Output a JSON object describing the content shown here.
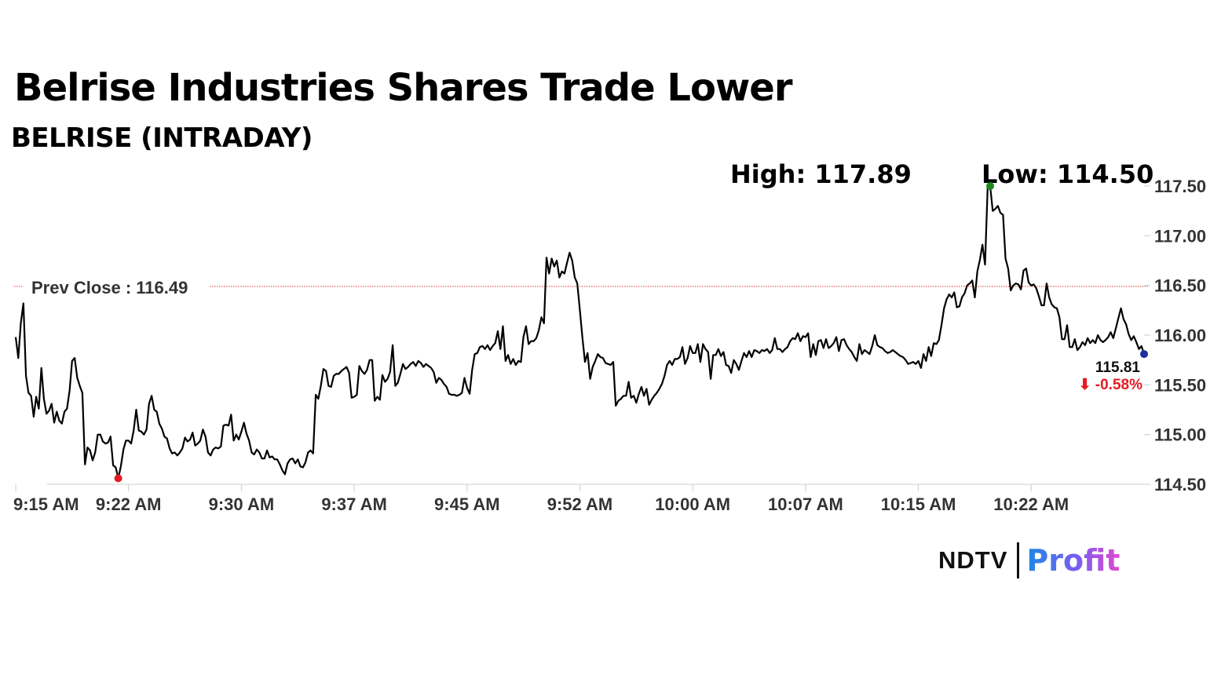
{
  "title": "Belrise Industries Shares Trade Lower",
  "subtitle": "BELRISE (INTRADAY)",
  "high_label": "High: 117.89",
  "low_label": "Low: 114.50",
  "prev_close_label": "Prev Close : 116.49",
  "last_price_label": "115.81",
  "change_label": "⬇ -0.58%",
  "logo": {
    "left": "NDTV",
    "right": "Profit"
  },
  "colors": {
    "line": "#000000",
    "prev_close": "#e53935",
    "high_marker": "#1a8a1a",
    "low_marker": "#e21b22",
    "last_marker": "#1f2f9e",
    "change_negative": "#e21b22",
    "axis": "#cccccc",
    "tick_text": "#333333"
  },
  "chart_data": {
    "type": "line",
    "title": "Belrise Industries Shares Trade Lower",
    "subtitle": "BELRISE (INTRADAY)",
    "xlabel": "",
    "ylabel": "",
    "x_ticks": [
      "9:15 AM",
      "9:22 AM",
      "9:30 AM",
      "9:37 AM",
      "9:45 AM",
      "9:52 AM",
      "10:00 AM",
      "10:07 AM",
      "10:15 AM",
      "10:22 AM"
    ],
    "y_ticks": [
      "114.50",
      "115.00",
      "115.50",
      "116.00",
      "116.50",
      "117.00",
      "117.50"
    ],
    "ylim": [
      114.5,
      117.5
    ],
    "grid": false,
    "reference_line": {
      "label": "Prev Close : 116.49",
      "value": 116.49
    },
    "high_point": {
      "time": "10:17 AM",
      "value": 117.5
    },
    "low_point": {
      "time": "9:22 AM",
      "value": 114.56
    },
    "last_point": {
      "time": "10:28 AM",
      "value": 115.81
    },
    "series": [
      {
        "values": [
          115.98,
          115.77,
          116.12,
          116.32,
          115.59,
          115.42,
          115.39,
          115.18,
          115.38,
          115.26,
          115.67,
          115.36,
          115.21,
          115.24,
          115.31,
          115.12,
          115.23,
          115.14,
          115.11,
          115.23,
          115.26,
          115.44,
          115.74,
          115.77,
          115.57,
          115.49,
          115.42,
          114.7,
          114.87,
          114.84,
          114.74,
          114.82,
          115.0,
          115.0,
          114.93,
          114.91,
          114.92,
          114.98,
          114.69,
          114.67,
          114.56,
          114.68,
          114.85,
          114.94,
          114.94,
          114.91,
          115.04,
          115.25,
          115.04,
          115.03,
          115.0,
          115.05,
          115.31,
          115.39,
          115.25,
          115.23,
          115.11,
          115.06,
          114.98,
          114.96,
          114.86,
          114.81,
          114.82,
          114.79,
          114.82,
          114.86,
          114.97,
          114.93,
          114.95,
          115.02,
          114.89,
          114.91,
          114.94,
          115.05,
          114.98,
          114.82,
          114.79,
          114.85,
          114.87,
          114.86,
          114.88,
          115.09,
          115.1,
          115.09,
          115.2,
          114.94,
          115.0,
          114.95,
          115.03,
          115.12,
          115.01,
          114.94,
          114.82,
          114.8,
          114.85,
          114.82,
          114.76,
          114.76,
          114.84,
          114.77,
          114.78,
          114.75,
          114.75,
          114.7,
          114.64,
          114.6,
          114.71,
          114.75,
          114.76,
          114.71,
          114.75,
          114.68,
          114.67,
          114.72,
          114.82,
          114.84,
          114.81,
          115.4,
          115.36,
          115.49,
          115.66,
          115.64,
          115.49,
          115.48,
          115.59,
          115.61,
          115.61,
          115.64,
          115.66,
          115.68,
          115.62,
          115.37,
          115.38,
          115.4,
          115.69,
          115.64,
          115.61,
          115.65,
          115.75,
          115.75,
          115.34,
          115.38,
          115.35,
          115.6,
          115.53,
          115.56,
          115.63,
          115.9,
          115.49,
          115.52,
          115.61,
          115.71,
          115.66,
          115.68,
          115.71,
          115.73,
          115.69,
          115.74,
          115.72,
          115.68,
          115.71,
          115.69,
          115.67,
          115.63,
          115.52,
          115.57,
          115.55,
          115.51,
          115.48,
          115.41,
          115.4,
          115.4,
          115.39,
          115.4,
          115.42,
          115.57,
          115.47,
          115.41,
          115.65,
          115.81,
          115.82,
          115.88,
          115.89,
          115.86,
          115.9,
          115.85,
          115.89,
          115.92,
          116.04,
          115.86,
          116.09,
          115.74,
          115.8,
          115.71,
          115.76,
          115.7,
          115.74,
          115.73,
          115.98,
          116.09,
          115.91,
          115.94,
          115.94,
          115.97,
          116.05,
          116.18,
          116.12,
          116.78,
          116.62,
          116.77,
          116.69,
          116.75,
          116.58,
          116.64,
          116.62,
          116.73,
          116.83,
          116.75,
          116.58,
          116.52,
          116.25,
          115.97,
          115.73,
          115.82,
          115.56,
          115.68,
          115.74,
          115.81,
          115.78,
          115.77,
          115.72,
          115.71,
          115.7,
          115.73,
          115.29,
          115.34,
          115.36,
          115.39,
          115.39,
          115.53,
          115.37,
          115.39,
          115.32,
          115.41,
          115.48,
          115.39,
          115.46,
          115.3,
          115.35,
          115.39,
          115.42,
          115.46,
          115.51,
          115.59,
          115.7,
          115.74,
          115.7,
          115.76,
          115.76,
          115.78,
          115.88,
          115.71,
          115.77,
          115.89,
          115.82,
          115.82,
          115.91,
          115.73,
          115.91,
          115.86,
          115.83,
          115.56,
          115.8,
          115.8,
          115.86,
          115.79,
          115.83,
          115.7,
          115.69,
          115.62,
          115.75,
          115.71,
          115.65,
          115.74,
          115.82,
          115.78,
          115.84,
          115.78,
          115.85,
          115.84,
          115.82,
          115.85,
          115.84,
          115.86,
          115.82,
          115.85,
          115.97,
          115.86,
          115.86,
          115.83,
          115.86,
          115.88,
          115.94,
          115.97,
          115.96,
          116.02,
          115.94,
          115.99,
          115.98,
          116.02,
          115.78,
          115.91,
          115.8,
          115.94,
          115.95,
          115.87,
          115.96,
          115.87,
          115.89,
          115.92,
          115.98,
          115.84,
          115.95,
          115.96,
          115.9,
          115.86,
          115.83,
          115.78,
          115.74,
          115.91,
          115.81,
          115.85,
          115.83,
          115.81,
          115.89,
          116.0,
          115.9,
          115.88,
          115.87,
          115.84,
          115.82,
          115.83,
          115.85,
          115.83,
          115.81,
          115.79,
          115.78,
          115.75,
          115.71,
          115.72,
          115.73,
          115.71,
          115.74,
          115.67,
          115.81,
          115.74,
          115.88,
          115.79,
          115.92,
          115.91,
          115.95,
          116.1,
          116.27,
          116.36,
          116.41,
          116.38,
          116.43,
          116.28,
          116.29,
          116.38,
          116.42,
          116.5,
          116.52,
          116.55,
          116.38,
          116.64,
          116.76,
          116.91,
          116.71,
          117.48,
          117.5,
          117.25,
          117.27,
          117.3,
          117.23,
          117.21,
          116.77,
          116.67,
          116.45,
          116.5,
          116.52,
          116.51,
          116.46,
          116.65,
          116.67,
          116.53,
          116.5,
          116.51,
          116.47,
          116.39,
          116.3,
          116.3,
          116.52,
          116.38,
          116.31,
          116.28,
          116.27,
          116.18,
          115.96,
          115.96,
          116.1,
          115.88,
          115.88,
          115.96,
          115.85,
          115.88,
          115.93,
          115.9,
          115.97,
          115.92,
          115.95,
          115.92,
          116.0,
          115.95,
          115.93,
          115.95,
          115.98,
          116.03,
          115.97,
          116.07,
          116.17,
          116.27,
          116.16,
          116.11,
          116.01,
          115.95,
          115.99,
          115.93,
          115.86,
          115.89,
          115.81
        ]
      }
    ]
  }
}
